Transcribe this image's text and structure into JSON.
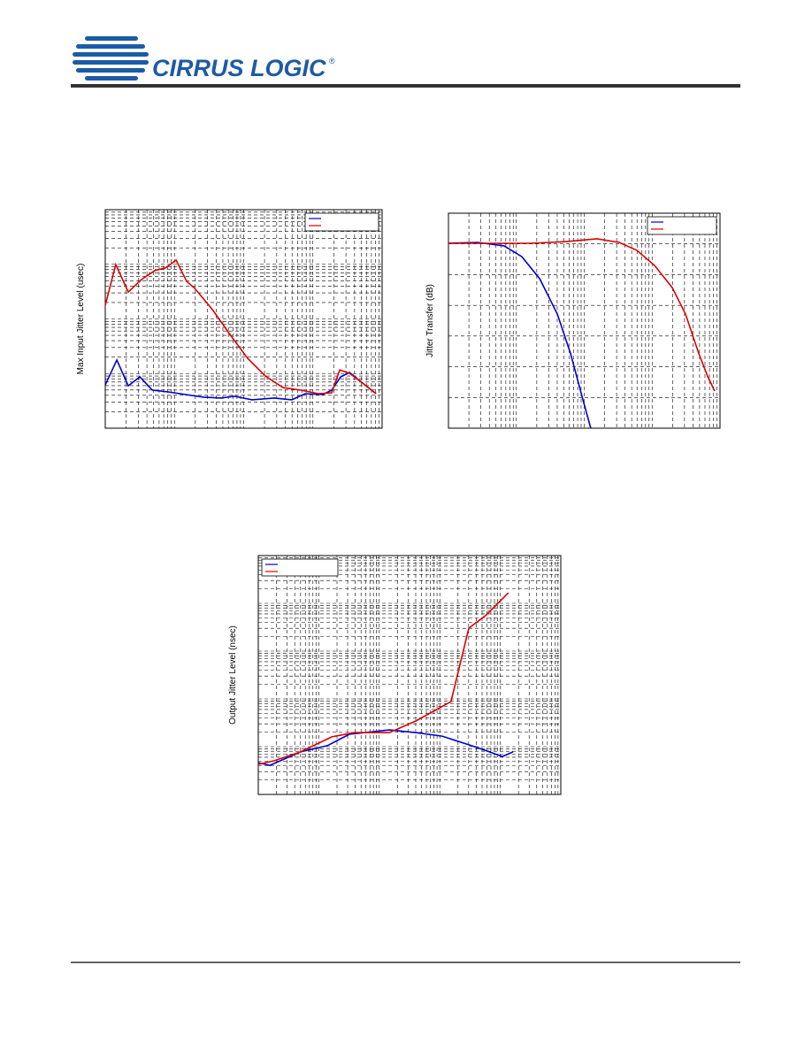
{
  "header": {
    "logo": "CIRRUS LOGIC",
    "registered": "®"
  },
  "chart_data": [
    {
      "type": "line",
      "ylabel": "Max Input Jitter Level (usec)",
      "xscale": "log",
      "yscale": "log",
      "grid": true,
      "legend": "upper right",
      "xlim": [
        0,
        100
      ],
      "ylim": [
        0,
        100
      ],
      "series": [
        {
          "color": "#0000cc",
          "x": [
            0,
            4.2,
            8.3,
            12.5,
            17.0,
            22.7,
            29.1,
            35.5,
            41.9,
            46.6,
            53.0,
            61.0,
            67.4,
            72.2,
            78.6,
            81.8,
            85.0,
            88.2,
            93.0,
            97.8
          ],
          "values": [
            19.8,
            31.2,
            19.4,
            23.5,
            17.4,
            16.6,
            15.4,
            14.2,
            13.8,
            14.6,
            13.0,
            13.8,
            13.0,
            15.8,
            15.4,
            17.4,
            23.5,
            25.5,
            20.6,
            15.8
          ]
        },
        {
          "color": "#dd0000",
          "x": [
            0,
            3.8,
            8.3,
            13.1,
            17.9,
            21.7,
            25.6,
            29.4,
            32.3,
            38.7,
            45.0,
            51.4,
            57.8,
            64.2,
            70.6,
            77.0,
            81.8,
            84.7,
            88.2,
            93.0,
            97.8
          ],
          "values": [
            56.3,
            74.9,
            62.3,
            68.0,
            72.1,
            73.3,
            76.9,
            67.2,
            64.0,
            54.3,
            42.9,
            32.0,
            23.9,
            18.6,
            17.4,
            15.8,
            16.2,
            26.7,
            25.1,
            20.6,
            15.8
          ]
        }
      ]
    },
    {
      "type": "line",
      "ylabel": "Jitter Transfer (dB)",
      "xscale": "log",
      "yscale": "linear",
      "grid": true,
      "legend": "upper right",
      "xlim": [
        0,
        100
      ],
      "ylim": [
        0,
        100
      ],
      "series": [
        {
          "color": "#0000cc",
          "x": [
            0,
            10.7,
            20.5,
            27.0,
            33.6,
            40.1,
            45.0,
            49.8,
            52.4
          ],
          "values": [
            86.0,
            86.4,
            84.8,
            79.8,
            69.5,
            53.1,
            34.6,
            11.9,
            0
          ]
        },
        {
          "color": "#dd0000",
          "x": [
            0,
            30.3,
            43.3,
            54.7,
            62.9,
            69.4,
            75.9,
            82.4,
            87.3,
            92.2,
            95.4,
            98.0
          ],
          "values": [
            86.0,
            86.0,
            86.8,
            88.1,
            86.4,
            82.7,
            75.7,
            65.4,
            53.1,
            34.6,
            24.3,
            17.3
          ]
        }
      ]
    },
    {
      "type": "line",
      "ylabel": "Output Jitter Level (nsec)",
      "xscale": "log",
      "yscale": "log",
      "grid": true,
      "legend": "upper left",
      "xlim": [
        0,
        100
      ],
      "ylim": [
        0,
        100
      ],
      "series": [
        {
          "color": "#0000cc",
          "x": [
            0,
            3.8,
            14.0,
            22.8,
            30.1,
            43.3,
            52.0,
            60.8,
            72.5,
            80.7,
            84.2
          ],
          "values": [
            13.3,
            12.2,
            17.8,
            20.4,
            25.2,
            27.0,
            25.9,
            24.4,
            19.6,
            15.9,
            17.8
          ]
        },
        {
          "color": "#dd0000",
          "x": [
            0,
            5.3,
            14.0,
            24.3,
            31.6,
            43.3,
            52.0,
            63.7,
            69.6,
            75.4,
            82.7
          ],
          "values": [
            12.6,
            14.1,
            17.8,
            24.1,
            25.9,
            25.9,
            30.7,
            38.9,
            69.6,
            75.2,
            84.4
          ]
        }
      ]
    }
  ]
}
